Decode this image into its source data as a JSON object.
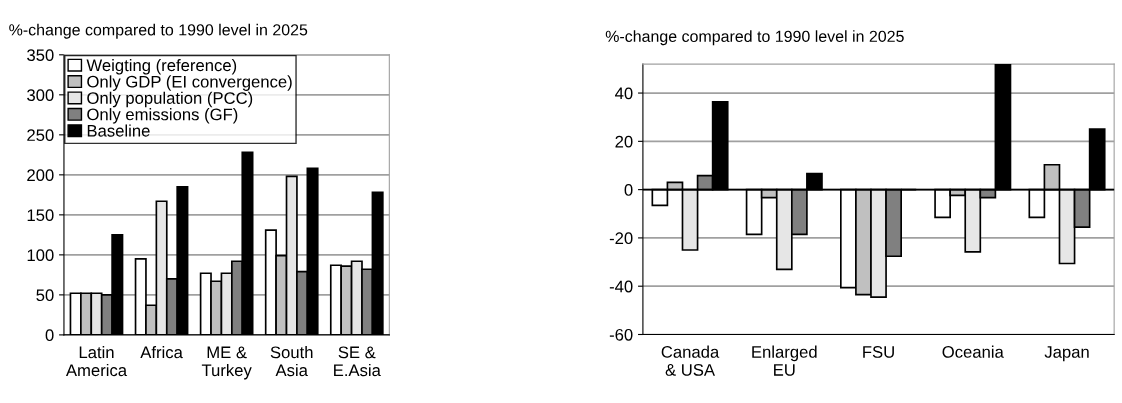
{
  "chart_data": [
    {
      "type": "bar",
      "title": "%-change compared to 1990 level in 2025",
      "categories": [
        "Latin\nAmerica",
        "Africa",
        "ME &\nTurkey",
        "South\nAsia",
        "SE &\nE.Asia"
      ],
      "series": [
        {
          "name": "Weigting (reference)",
          "color": "#ffffff",
          "values": [
            52,
            95,
            77,
            131,
            87
          ]
        },
        {
          "name": "Only GDP (EI convergence)",
          "color": "#c0c0c0",
          "values": [
            52,
            37,
            67,
            99,
            86
          ]
        },
        {
          "name": "Only population (PCC)",
          "color": "#e6e6e6",
          "values": [
            52,
            167,
            77,
            198,
            92
          ]
        },
        {
          "name": "Only emissions (GF)",
          "color": "#808080",
          "values": [
            50,
            70,
            92,
            79,
            82
          ]
        },
        {
          "name": "Baseline",
          "color": "#000000",
          "values": [
            125,
            185,
            228,
            208,
            178
          ]
        }
      ],
      "ylim": [
        0,
        350
      ],
      "yticks": [
        0,
        50,
        100,
        150,
        200,
        250,
        300,
        350
      ],
      "grid": "y",
      "legend": "top left"
    },
    {
      "type": "bar",
      "title": "%-change compared to 1990 level in 2025",
      "categories": [
        "Canada\n& USA",
        "Enlarged\nEU",
        "FSU",
        "Oceania",
        "Japan"
      ],
      "series": [
        {
          "color": "#ffffff",
          "values": [
            -6.5,
            -18.5,
            -40.6,
            -11.5,
            -11.5
          ]
        },
        {
          "color": "#c0c0c0",
          "values": [
            3,
            -3.3,
            -43.5,
            -2.4,
            10.3
          ]
        },
        {
          "color": "#e6e6e6",
          "values": [
            -25,
            -33,
            -44.5,
            -25.8,
            -30.6
          ]
        },
        {
          "color": "#808080",
          "values": [
            5.8,
            -18.5,
            -27.6,
            -3.3,
            -15.5
          ]
        },
        {
          "color": "#000000",
          "values": [
            36.4,
            6.6,
            0,
            52,
            25.1
          ]
        }
      ],
      "ylim": [
        -60,
        52
      ],
      "yticks": [
        -60,
        -40,
        -20,
        0,
        20,
        40
      ],
      "grid": "y",
      "ref_lines": [
        {
          "axis": "y",
          "value": 0,
          "color": "#000000"
        }
      ]
    }
  ]
}
